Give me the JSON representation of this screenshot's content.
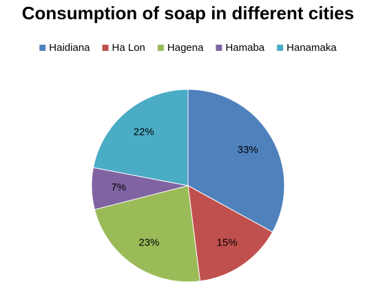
{
  "chart_data": {
    "type": "pie",
    "title": "Consumption of soap in different cities",
    "categories": [
      "Haidiana",
      "Ha Lon",
      "Hagena",
      "Hamaba",
      "Hanamaka"
    ],
    "values": [
      33,
      15,
      23,
      7,
      22
    ],
    "value_labels": [
      "33%",
      "15%",
      "23%",
      "7%",
      "22%"
    ],
    "colors": [
      "#4f81bd",
      "#c0504d",
      "#9bbb59",
      "#8064a2",
      "#4bacc6"
    ],
    "legend": "top"
  }
}
